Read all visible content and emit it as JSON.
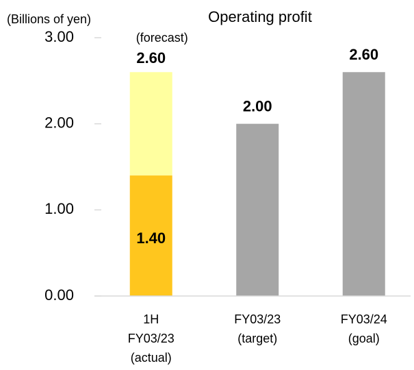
{
  "chart_data": {
    "type": "stacked_bar",
    "title": "Operating profit",
    "y_label": "(Billions of yen)",
    "categories": [
      [
        "1H",
        "FY03/23",
        "(actual)"
      ],
      [
        "FY03/23",
        "(target)"
      ],
      [
        "FY03/24",
        "(goal)"
      ]
    ],
    "series": [
      {
        "colors": [
          "#ffc61e",
          "#a6a6a6",
          "#a6a6a6"
        ],
        "values": [
          1.4,
          2.0,
          2.6
        ],
        "value_labels": [
          "1.40",
          "2.00",
          "2.60"
        ]
      },
      {
        "name": "(forecast)",
        "color": "#ffff9f",
        "values": [
          1.2,
          null,
          null
        ]
      }
    ],
    "stack_total_labels": [
      "2.60",
      null,
      null
    ],
    "ylim": [
      0,
      3
    ],
    "yticks": [
      {
        "value": 0,
        "label": "0.00"
      },
      {
        "value": 1,
        "label": "1.00"
      },
      {
        "value": 2,
        "label": "2.00"
      },
      {
        "value": 3,
        "label": "3.00"
      }
    ]
  }
}
